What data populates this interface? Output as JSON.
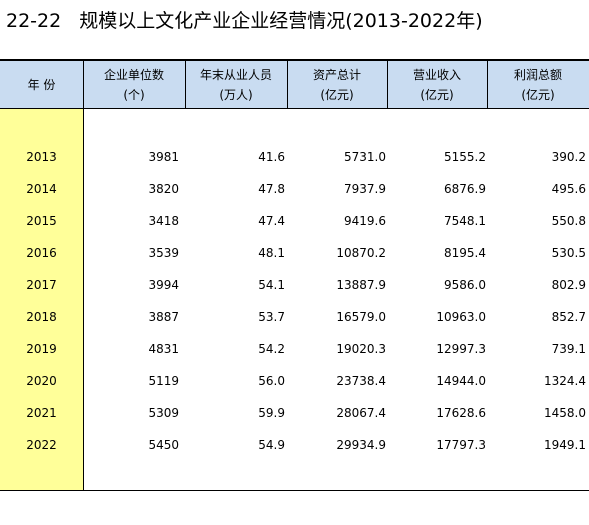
{
  "title": {
    "number": "22-22",
    "text": "规模以上文化产业企业经营情况(2013-2022年)"
  },
  "colors": {
    "header_bg": "#c9dcf1",
    "year_bg": "#ffff99"
  },
  "columns": [
    {
      "label": "年 份",
      "unit": ""
    },
    {
      "label": "企业单位数",
      "unit": "(个)"
    },
    {
      "label": "年末从业人员",
      "unit": "(万人)"
    },
    {
      "label": "资产总计",
      "unit": "(亿元)"
    },
    {
      "label": "营业收入",
      "unit": "(亿元)"
    },
    {
      "label": "利润总额",
      "unit": "(亿元)"
    }
  ],
  "rows": [
    {
      "year": "2013",
      "units": "3981",
      "employees": "41.6",
      "assets": "5731.0",
      "revenue": "5155.2",
      "profit": "390.2"
    },
    {
      "year": "2014",
      "units": "3820",
      "employees": "47.8",
      "assets": "7937.9",
      "revenue": "6876.9",
      "profit": "495.6"
    },
    {
      "year": "2015",
      "units": "3418",
      "employees": "47.4",
      "assets": "9419.6",
      "revenue": "7548.1",
      "profit": "550.8"
    },
    {
      "year": "2016",
      "units": "3539",
      "employees": "48.1",
      "assets": "10870.2",
      "revenue": "8195.4",
      "profit": "530.5"
    },
    {
      "year": "2017",
      "units": "3994",
      "employees": "54.1",
      "assets": "13887.9",
      "revenue": "9586.0",
      "profit": "802.9"
    },
    {
      "year": "2018",
      "units": "3887",
      "employees": "53.7",
      "assets": "16579.0",
      "revenue": "10963.0",
      "profit": "852.7"
    },
    {
      "year": "2019",
      "units": "4831",
      "employees": "54.2",
      "assets": "19020.3",
      "revenue": "12997.3",
      "profit": "739.1"
    },
    {
      "year": "2020",
      "units": "5119",
      "employees": "56.0",
      "assets": "23738.4",
      "revenue": "14944.0",
      "profit": "1324.4"
    },
    {
      "year": "2021",
      "units": "5309",
      "employees": "59.9",
      "assets": "28067.4",
      "revenue": "17628.6",
      "profit": "1458.0"
    },
    {
      "year": "2022",
      "units": "5450",
      "employees": "54.9",
      "assets": "29934.9",
      "revenue": "17797.3",
      "profit": "1949.1"
    }
  ]
}
